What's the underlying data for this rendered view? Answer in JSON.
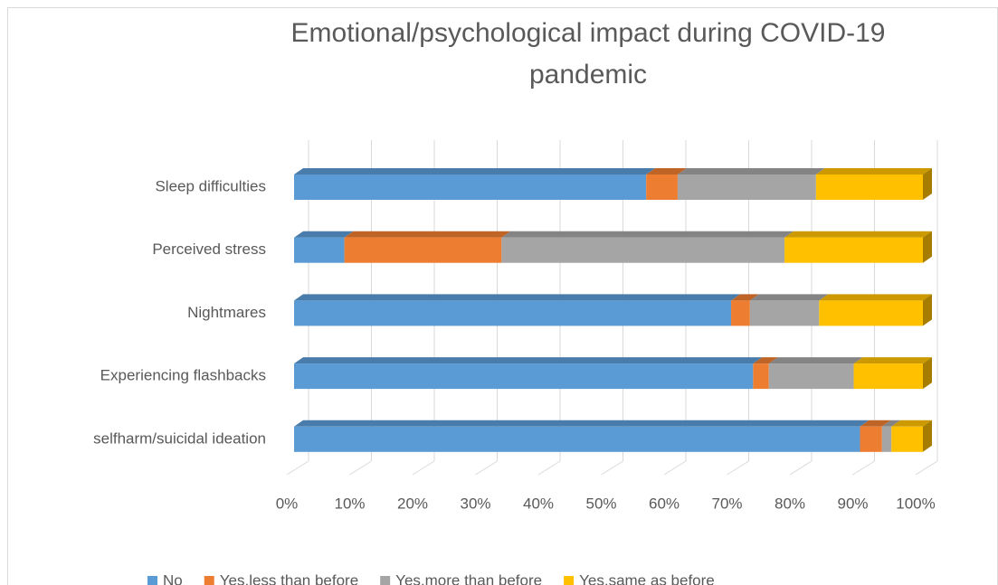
{
  "chart_data": {
    "type": "bar",
    "orientation": "horizontal",
    "stacked": true,
    "three_d": true,
    "title": "Emotional/psychological impact during COVID-19 pandemic",
    "categories": [
      "Sleep difficulties",
      "Perceived stress",
      "Nightmares",
      "Experiencing flashbacks",
      "selfharm/suicidal ideation"
    ],
    "series": [
      {
        "name": "No",
        "color": "#5b9bd5",
        "values": [
          56,
          8,
          69.5,
          73,
          90
        ]
      },
      {
        "name": "Yes,less than before",
        "color": "#ed7d31",
        "values": [
          5,
          25,
          3,
          2.5,
          3.5
        ]
      },
      {
        "name": "Yes,more than before",
        "color": "#a5a5a5",
        "values": [
          22,
          45,
          11,
          13.5,
          1.5
        ]
      },
      {
        "name": "Yes,same as before",
        "color": "#ffc000",
        "values": [
          17,
          22,
          16.5,
          11,
          5
        ]
      }
    ],
    "xlim": [
      0,
      100
    ],
    "xticks": [
      {
        "value": 0,
        "label": "0%"
      },
      {
        "value": 10,
        "label": "10%"
      },
      {
        "value": 20,
        "label": "20%"
      },
      {
        "value": 30,
        "label": "30%"
      },
      {
        "value": 40,
        "label": "40%"
      },
      {
        "value": 50,
        "label": "50%"
      },
      {
        "value": 60,
        "label": "60%"
      },
      {
        "value": 70,
        "label": "70%"
      },
      {
        "value": 80,
        "label": "80%"
      },
      {
        "value": 90,
        "label": "90%"
      },
      {
        "value": 100,
        "label": "100%"
      }
    ],
    "grid": true,
    "legend": "bottom"
  }
}
